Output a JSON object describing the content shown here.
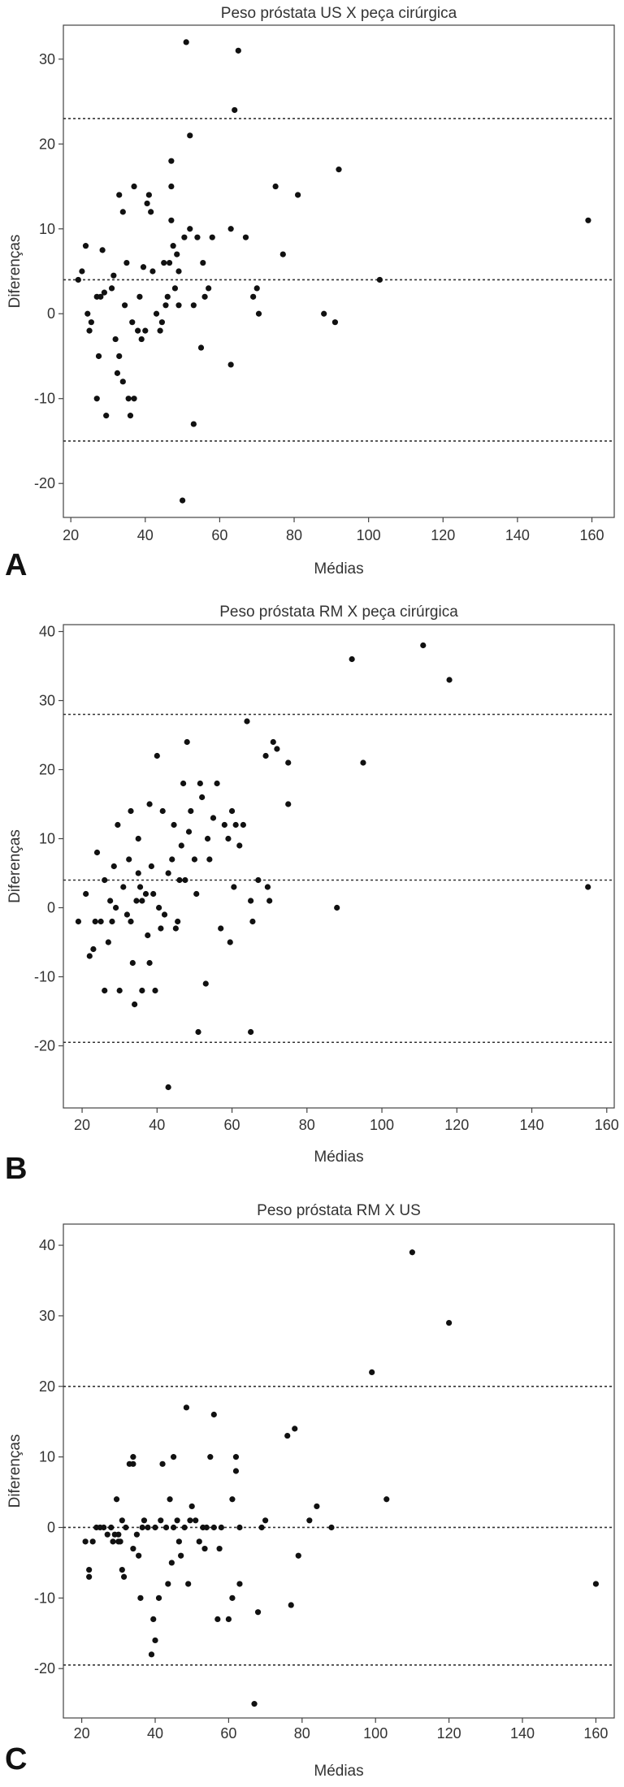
{
  "chart_data": [
    {
      "panel_label": "A",
      "type": "scatter",
      "title": "Peso próstata US X peça cirúrgica",
      "xlabel": "Médias",
      "ylabel": "Diferenças",
      "xlim": [
        18,
        166
      ],
      "ylim": [
        -24,
        34
      ],
      "xticks": [
        20,
        40,
        60,
        80,
        100,
        120,
        140,
        160
      ],
      "yticks": [
        -20,
        -10,
        0,
        10,
        20,
        30
      ],
      "reference_lines": [
        23,
        4,
        -15
      ],
      "points": [
        [
          22,
          4
        ],
        [
          23,
          5
        ],
        [
          24,
          8
        ],
        [
          24.5,
          0
        ],
        [
          25,
          -2
        ],
        [
          25.5,
          -1
        ],
        [
          27,
          2
        ],
        [
          27.5,
          -5
        ],
        [
          27,
          -10
        ],
        [
          28,
          2
        ],
        [
          28.5,
          7.5
        ],
        [
          29,
          2.5
        ],
        [
          29.5,
          -12
        ],
        [
          31,
          3
        ],
        [
          31.5,
          4.5
        ],
        [
          32,
          -3
        ],
        [
          32.5,
          -7
        ],
        [
          33,
          14
        ],
        [
          33,
          -5
        ],
        [
          34,
          12
        ],
        [
          34,
          -8
        ],
        [
          34.5,
          1
        ],
        [
          35,
          6
        ],
        [
          35.5,
          -10
        ],
        [
          36,
          -12
        ],
        [
          36.5,
          -1
        ],
        [
          37,
          -10
        ],
        [
          37,
          15
        ],
        [
          38,
          -2
        ],
        [
          38.5,
          2
        ],
        [
          39,
          -3
        ],
        [
          39.5,
          5.5
        ],
        [
          40,
          -2
        ],
        [
          40.5,
          13
        ],
        [
          41,
          14
        ],
        [
          41.5,
          12
        ],
        [
          42,
          5
        ],
        [
          43,
          0
        ],
        [
          44,
          -2
        ],
        [
          44.5,
          -1
        ],
        [
          45,
          6
        ],
        [
          45.5,
          1
        ],
        [
          46,
          2
        ],
        [
          46.5,
          6
        ],
        [
          47,
          18
        ],
        [
          47,
          15
        ],
        [
          47,
          11
        ],
        [
          47.5,
          8
        ],
        [
          48,
          3
        ],
        [
          48.5,
          7
        ],
        [
          49,
          5
        ],
        [
          49,
          1
        ],
        [
          50,
          -22
        ],
        [
          50.5,
          9
        ],
        [
          51,
          32
        ],
        [
          52,
          21
        ],
        [
          52,
          10
        ],
        [
          53,
          -13
        ],
        [
          53,
          1
        ],
        [
          54,
          9
        ],
        [
          55,
          -4
        ],
        [
          55.5,
          6
        ],
        [
          56,
          2
        ],
        [
          57,
          3
        ],
        [
          58,
          9
        ],
        [
          63,
          10
        ],
        [
          63,
          -6
        ],
        [
          64,
          24
        ],
        [
          65,
          31
        ],
        [
          67,
          9
        ],
        [
          69,
          2
        ],
        [
          70,
          3
        ],
        [
          70.5,
          0
        ],
        [
          75,
          15
        ],
        [
          77,
          7
        ],
        [
          81,
          14
        ],
        [
          88,
          0
        ],
        [
          91,
          -1
        ],
        [
          92,
          17
        ],
        [
          103,
          4
        ],
        [
          159,
          11
        ]
      ]
    },
    {
      "panel_label": "B",
      "type": "scatter",
      "title": "Peso próstata RM X peça cirúrgica",
      "xlabel": "Médias",
      "ylabel": "Diferenças",
      "xlim": [
        15,
        162
      ],
      "ylim": [
        -29,
        41
      ],
      "xticks": [
        20,
        40,
        60,
        80,
        100,
        120,
        140,
        160
      ],
      "yticks": [
        -20,
        -10,
        0,
        10,
        20,
        30,
        40
      ],
      "reference_lines": [
        28,
        4,
        -19.5
      ],
      "points": [
        [
          19,
          -2
        ],
        [
          21,
          2
        ],
        [
          22,
          -7
        ],
        [
          23,
          -6
        ],
        [
          23.5,
          -2
        ],
        [
          24,
          8
        ],
        [
          25,
          -2
        ],
        [
          26,
          -12
        ],
        [
          26,
          4
        ],
        [
          27,
          -5
        ],
        [
          27.5,
          1
        ],
        [
          28,
          -2
        ],
        [
          28.5,
          6
        ],
        [
          29,
          0
        ],
        [
          29.5,
          12
        ],
        [
          30,
          -12
        ],
        [
          31,
          3
        ],
        [
          32,
          -1
        ],
        [
          32.5,
          7
        ],
        [
          33,
          14
        ],
        [
          33,
          -2
        ],
        [
          33.5,
          -8
        ],
        [
          34,
          -14
        ],
        [
          34.5,
          1
        ],
        [
          35,
          10
        ],
        [
          35,
          5
        ],
        [
          35.5,
          3
        ],
        [
          36,
          -12
        ],
        [
          36,
          1
        ],
        [
          37,
          2
        ],
        [
          37.5,
          -4
        ],
        [
          38,
          15
        ],
        [
          38,
          -8
        ],
        [
          38.5,
          6
        ],
        [
          39,
          2
        ],
        [
          39.5,
          -12
        ],
        [
          40,
          22
        ],
        [
          40.5,
          0
        ],
        [
          41,
          -3
        ],
        [
          41.5,
          14
        ],
        [
          42,
          -1
        ],
        [
          43,
          -26
        ],
        [
          43,
          5
        ],
        [
          44,
          7
        ],
        [
          44.5,
          12
        ],
        [
          45,
          -3
        ],
        [
          45.5,
          -2
        ],
        [
          46,
          4
        ],
        [
          46.5,
          9
        ],
        [
          47,
          18
        ],
        [
          47.5,
          4
        ],
        [
          48,
          24
        ],
        [
          48.5,
          11
        ],
        [
          49,
          14
        ],
        [
          50,
          7
        ],
        [
          50.5,
          2
        ],
        [
          51,
          -18
        ],
        [
          51.5,
          18
        ],
        [
          52,
          16
        ],
        [
          53,
          -11
        ],
        [
          53.5,
          10
        ],
        [
          54,
          7
        ],
        [
          55,
          13
        ],
        [
          56,
          18
        ],
        [
          57,
          -3
        ],
        [
          58,
          12
        ],
        [
          59,
          10
        ],
        [
          59.5,
          -5
        ],
        [
          60,
          14
        ],
        [
          60.5,
          3
        ],
        [
          61,
          12
        ],
        [
          62,
          9
        ],
        [
          63,
          12
        ],
        [
          64,
          27
        ],
        [
          65,
          -18
        ],
        [
          65,
          1
        ],
        [
          65.5,
          -2
        ],
        [
          67,
          4
        ],
        [
          69,
          22
        ],
        [
          69.5,
          3
        ],
        [
          70,
          1
        ],
        [
          71,
          24
        ],
        [
          72,
          23
        ],
        [
          75,
          15
        ],
        [
          75,
          21
        ],
        [
          88,
          0
        ],
        [
          92,
          36
        ],
        [
          95,
          21
        ],
        [
          111,
          38
        ],
        [
          118,
          33
        ],
        [
          155,
          3
        ]
      ]
    },
    {
      "panel_label": "C",
      "type": "scatter",
      "title": "Peso próstata RM X US",
      "xlabel": "Médias",
      "ylabel": "Diferenças",
      "xlim": [
        15,
        165
      ],
      "ylim": [
        -27,
        43
      ],
      "xticks": [
        20,
        40,
        60,
        80,
        100,
        120,
        140,
        160
      ],
      "yticks": [
        -20,
        -10,
        0,
        10,
        20,
        30,
        40
      ],
      "reference_lines": [
        20,
        0,
        -19.5
      ],
      "points": [
        [
          21,
          -2
        ],
        [
          22,
          -6
        ],
        [
          22,
          -7
        ],
        [
          23,
          -2
        ],
        [
          24,
          0
        ],
        [
          25,
          0
        ],
        [
          26,
          0
        ],
        [
          27,
          -1
        ],
        [
          28,
          0
        ],
        [
          28.5,
          -2
        ],
        [
          29,
          -1
        ],
        [
          29.5,
          4
        ],
        [
          30,
          -2
        ],
        [
          30,
          -1
        ],
        [
          30.5,
          -2
        ],
        [
          31,
          1
        ],
        [
          31,
          -6
        ],
        [
          31.5,
          -7
        ],
        [
          32,
          0
        ],
        [
          33,
          9
        ],
        [
          34,
          10
        ],
        [
          34,
          9
        ],
        [
          34,
          -3
        ],
        [
          35,
          -1
        ],
        [
          35.5,
          -4
        ],
        [
          36,
          -10
        ],
        [
          36.5,
          0
        ],
        [
          37,
          1
        ],
        [
          38,
          0
        ],
        [
          39,
          -18
        ],
        [
          39.5,
          -13
        ],
        [
          40,
          -16
        ],
        [
          40,
          0
        ],
        [
          41,
          -10
        ],
        [
          41.5,
          1
        ],
        [
          42,
          9
        ],
        [
          43,
          0
        ],
        [
          43.5,
          -8
        ],
        [
          44,
          4
        ],
        [
          44.5,
          -5
        ],
        [
          45,
          10
        ],
        [
          45,
          0
        ],
        [
          46,
          1
        ],
        [
          46.5,
          -2
        ],
        [
          47,
          -4
        ],
        [
          48,
          0
        ],
        [
          48.5,
          17
        ],
        [
          49,
          -8
        ],
        [
          49.5,
          1
        ],
        [
          50,
          3
        ],
        [
          51,
          1
        ],
        [
          52,
          -2
        ],
        [
          53,
          0
        ],
        [
          53.5,
          -3
        ],
        [
          54,
          0
        ],
        [
          55,
          10
        ],
        [
          56,
          16
        ],
        [
          56,
          0
        ],
        [
          57,
          -13
        ],
        [
          57.5,
          -3
        ],
        [
          58,
          0
        ],
        [
          60,
          -13
        ],
        [
          61,
          -10
        ],
        [
          61,
          4
        ],
        [
          62,
          10
        ],
        [
          62,
          8
        ],
        [
          63,
          0
        ],
        [
          63,
          -8
        ],
        [
          67,
          -25
        ],
        [
          68,
          -12
        ],
        [
          69,
          0
        ],
        [
          70,
          1
        ],
        [
          76,
          13
        ],
        [
          77,
          -11
        ],
        [
          78,
          14
        ],
        [
          79,
          -4
        ],
        [
          82,
          1
        ],
        [
          84,
          3
        ],
        [
          88,
          0
        ],
        [
          99,
          22
        ],
        [
          103,
          4
        ],
        [
          110,
          39
        ],
        [
          120,
          29
        ],
        [
          160,
          -8
        ]
      ]
    }
  ]
}
